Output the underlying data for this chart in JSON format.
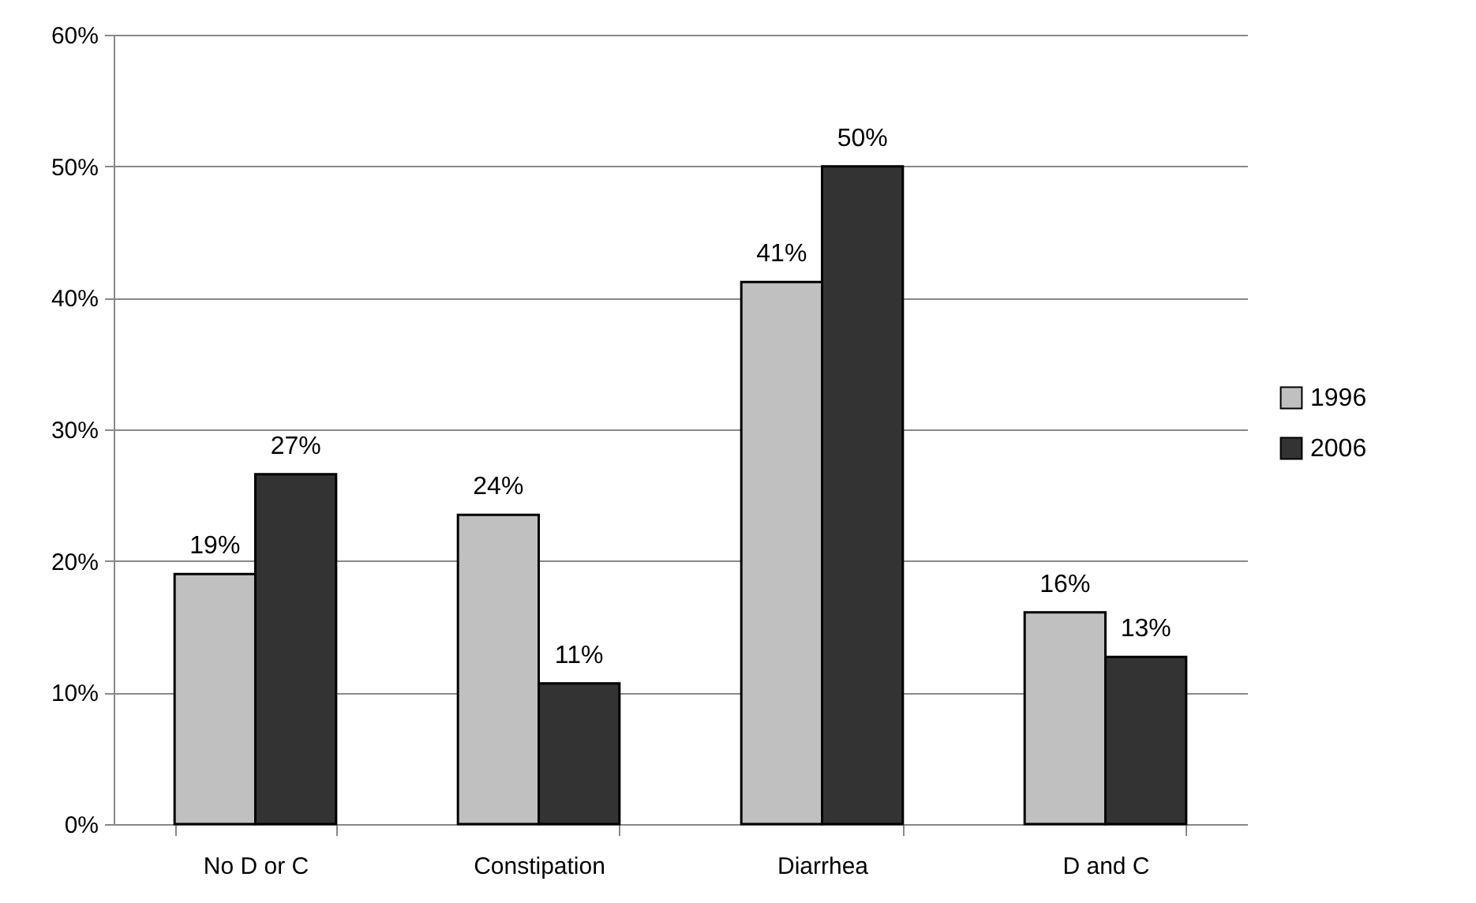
{
  "chart_data": {
    "type": "bar",
    "categories": [
      "No D or C",
      "Constipation",
      "Diarrhea",
      "D and C"
    ],
    "series": [
      {
        "name": "1996",
        "color": "#c0c0c0",
        "values": [
          19,
          23.5,
          41.2,
          16.1
        ],
        "value_labels": [
          "19%",
          "24%",
          "41%",
          "16%"
        ]
      },
      {
        "name": "2006",
        "color": "#333333",
        "values": [
          26.6,
          10.7,
          50,
          12.7
        ],
        "value_labels": [
          "27%",
          "11%",
          "50%",
          "13%"
        ]
      }
    ],
    "ylim": [
      0,
      60
    ],
    "yticks": [
      {
        "value": 0,
        "label": "0%"
      },
      {
        "value": 10,
        "label": "10%"
      },
      {
        "value": 20,
        "label": "20%"
      },
      {
        "value": 30,
        "label": "30%"
      },
      {
        "value": 40,
        "label": "40%"
      },
      {
        "value": 50,
        "label": "50%"
      },
      {
        "value": 60,
        "label": "60%"
      }
    ],
    "grid": "y",
    "legend": "right"
  }
}
